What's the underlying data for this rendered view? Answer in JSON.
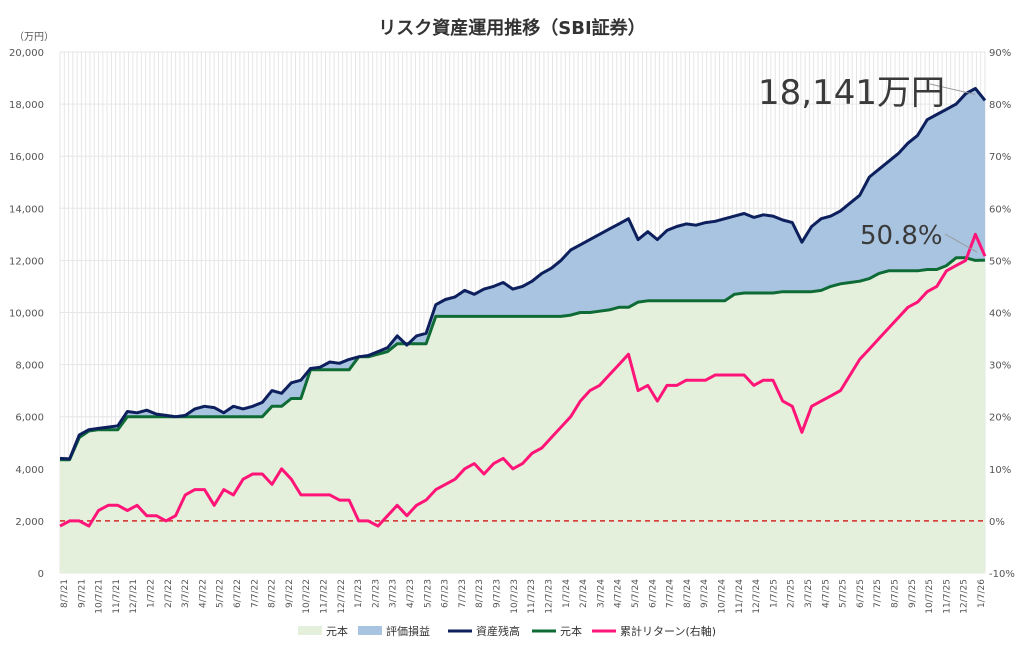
{
  "chart_data": {
    "type": "line",
    "title": "リスク資産運用推移（SBI証券）",
    "y_left_unit": "（万円）",
    "y_left_lim": [
      0,
      20000
    ],
    "y_left_ticks": [
      "0",
      "2,000",
      "4,000",
      "6,000",
      "8,000",
      "10,000",
      "12,000",
      "14,000",
      "16,000",
      "18,000",
      "20,000"
    ],
    "y_right_lim": [
      -10,
      90
    ],
    "y_right_ticks": [
      "-10%",
      "0%",
      "10%",
      "20%",
      "30%",
      "40%",
      "50%",
      "60%",
      "70%",
      "80%",
      "90%"
    ],
    "x_ticks": [
      "8/7/21",
      "9/7/21",
      "10/7/21",
      "11/7/21",
      "12/7/21",
      "1/7/22",
      "2/7/22",
      "3/7/22",
      "4/7/22",
      "5/7/22",
      "6/7/22",
      "7/7/22",
      "8/7/22",
      "9/7/22",
      "10/7/22",
      "11/7/22",
      "12/7/22",
      "1/7/23",
      "2/7/23",
      "3/7/23",
      "4/7/23",
      "5/7/23",
      "6/7/23",
      "7/7/23",
      "8/7/23",
      "9/7/23",
      "10/7/23",
      "11/7/23",
      "12/7/23",
      "1/7/24",
      "2/7/24",
      "3/7/24",
      "4/7/24",
      "5/7/24",
      "6/7/24",
      "7/7/24",
      "8/7/24",
      "9/7/24",
      "10/7/24",
      "11/7/24",
      "12/7/24",
      "1/7/25",
      "2/7/25",
      "3/7/25",
      "4/7/25",
      "5/7/25",
      "6/7/25",
      "7/7/25",
      "8/7/25",
      "9/7/25",
      "10/7/25",
      "11/7/25",
      "12/7/25",
      "1/7/26"
    ],
    "grid": true,
    "legend_position": "bottom",
    "legend": [
      "元本",
      "評価損益",
      "資産残高",
      "元本",
      "累計リターン(右軸)"
    ],
    "colors": {
      "principal_area": "#e5f0dc",
      "gain_area": "#a8c4e0",
      "balance_line": "#0d1f5c",
      "principal_line": "#0f6b35",
      "return_line": "#ff1478",
      "zero_line": "#d42a2a",
      "grid": "#e6e6e6"
    },
    "annotations": [
      {
        "text": "18,141万円",
        "series": "資産残高",
        "value": 18141
      },
      {
        "text": "50.8%",
        "series": "累計リターン(右軸)",
        "value": 50.8
      }
    ],
    "series": [
      {
        "name": "資産残高",
        "axis": "left",
        "values": [
          4400,
          4380,
          5300,
          5500,
          5550,
          5600,
          5650,
          6200,
          6150,
          6250,
          6100,
          6050,
          6000,
          6050,
          6300,
          6400,
          6350,
          6150,
          6400,
          6300,
          6400,
          6550,
          7000,
          6900,
          7300,
          7400,
          7850,
          7900,
          8100,
          8050,
          8200,
          8300,
          8350,
          8500,
          8650,
          9100,
          8750,
          9100,
          9200,
          10300,
          10500,
          10600,
          10850,
          10700,
          10900,
          11000,
          11150,
          10900,
          11000,
          11200,
          11500,
          11700,
          12000,
          12400,
          12600,
          12800,
          13000,
          13200,
          13400,
          13600,
          12800,
          13100,
          12800,
          13150,
          13300,
          13400,
          13350,
          13450,
          13500,
          13600,
          13700,
          13800,
          13650,
          13750,
          13700,
          13550,
          13450,
          12700,
          13300,
          13600,
          13700,
          13900,
          14200,
          14500,
          15200,
          15500,
          15800,
          16100,
          16500,
          16800,
          17400,
          17600,
          17800,
          18000,
          18400,
          18600,
          18141
        ]
      },
      {
        "name": "元本",
        "axis": "left",
        "values": [
          4350,
          4350,
          5200,
          5450,
          5500,
          5500,
          5500,
          6000,
          6000,
          6000,
          6000,
          6000,
          6000,
          6000,
          6000,
          6000,
          6000,
          6000,
          6000,
          6000,
          6000,
          6000,
          6400,
          6400,
          6700,
          6700,
          7800,
          7800,
          7800,
          7800,
          7800,
          8300,
          8300,
          8400,
          8500,
          8800,
          8800,
          8800,
          8800,
          9850,
          9850,
          9850,
          9850,
          9850,
          9850,
          9850,
          9850,
          9850,
          9850,
          9850,
          9850,
          9850,
          9850,
          9900,
          10000,
          10000,
          10050,
          10100,
          10200,
          10200,
          10400,
          10450,
          10450,
          10450,
          10450,
          10450,
          10450,
          10450,
          10450,
          10450,
          10700,
          10750,
          10750,
          10750,
          10750,
          10800,
          10800,
          10800,
          10800,
          10850,
          11000,
          11100,
          11150,
          11200,
          11300,
          11500,
          11600,
          11600,
          11600,
          11600,
          11650,
          11650,
          11800,
          12100,
          12100,
          12000,
          12010
        ]
      },
      {
        "name": "累計リターン(右軸)",
        "axis": "right",
        "values": [
          -1,
          0,
          0,
          -1,
          2,
          3,
          3,
          2,
          3,
          1,
          1,
          0,
          1,
          5,
          6,
          6,
          3,
          6,
          5,
          8,
          9,
          9,
          7,
          10,
          8,
          5,
          5,
          5,
          5,
          4,
          4,
          0,
          0,
          -1,
          1,
          3,
          1,
          3,
          4,
          6,
          7,
          8,
          10,
          11,
          9,
          11,
          12,
          10,
          11,
          13,
          14,
          16,
          18,
          20,
          23,
          25,
          26,
          28,
          30,
          32,
          25,
          26,
          23,
          26,
          26,
          27,
          27,
          27,
          28,
          28,
          28,
          28,
          26,
          27,
          27,
          23,
          22,
          17,
          22,
          23,
          24,
          25,
          28,
          31,
          33,
          35,
          37,
          39,
          41,
          42,
          44,
          45,
          48,
          49,
          50,
          55,
          50.8
        ]
      }
    ]
  }
}
